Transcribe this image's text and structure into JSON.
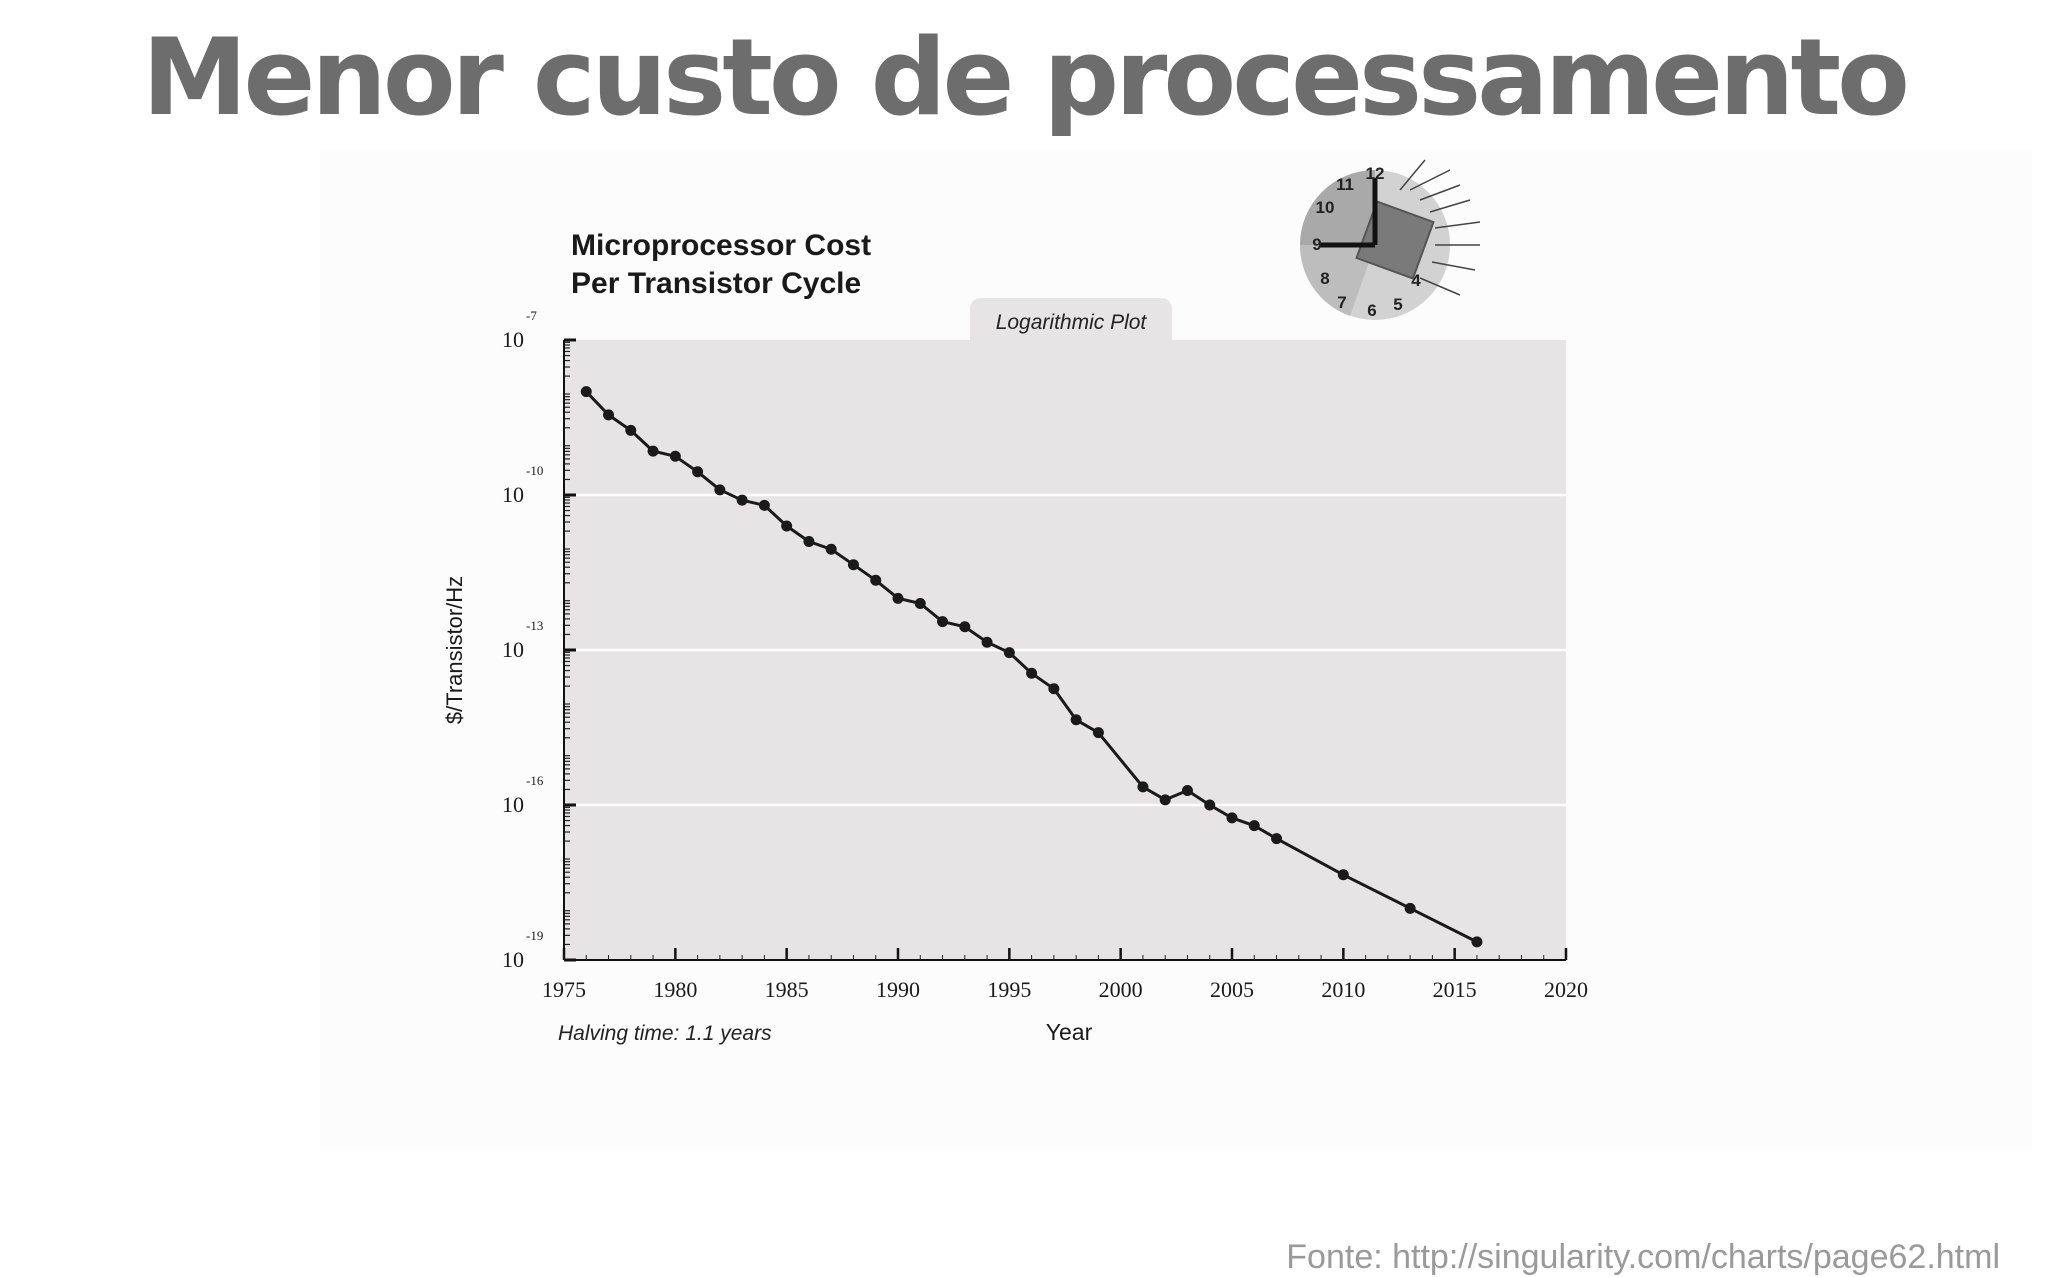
{
  "slide": {
    "title": "Menor custo de processamento",
    "source": "Fonte: http://singularity.com/charts/page62.html"
  },
  "colors": {
    "title": "#6d6d6d",
    "plot_background": "#e6e4e5",
    "line": "#1a1a1a",
    "source_text": "#9a9a9a"
  },
  "clock_icon": {
    "name": "clock-chip-icon",
    "numbers": [
      "12",
      "11",
      "10",
      "9",
      "8",
      "7",
      "6",
      "5",
      "4"
    ]
  },
  "chart_data": {
    "type": "line",
    "title_lines": [
      "Microprocessor Cost",
      "Per Transistor Cycle"
    ],
    "tab_label": "Logarithmic Plot",
    "xlabel": "Year",
    "ylabel": "$/Transistor/Hz",
    "note": "Halving time: 1.1 years",
    "y_scale": "log",
    "xlim": [
      1975,
      2020
    ],
    "ylim_exponent": [
      -19,
      -7
    ],
    "x_ticks": [
      "1975",
      "1980",
      "1985",
      "1990",
      "1995",
      "2000",
      "2005",
      "2010",
      "2015",
      "2020"
    ],
    "y_ticks": [
      {
        "base": "10",
        "exp": "-7"
      },
      {
        "base": "10",
        "exp": "-10"
      },
      {
        "base": "10",
        "exp": "-13"
      },
      {
        "base": "10",
        "exp": "-16"
      },
      {
        "base": "10",
        "exp": "-19"
      }
    ],
    "grid": "horizontal at major ticks",
    "series": [
      {
        "x": [
          1976,
          1977,
          1978,
          1979,
          1980,
          1981,
          1982,
          1983,
          1984,
          1985,
          1986,
          1987,
          1988,
          1989,
          1990,
          1991,
          1992,
          1993,
          1994,
          1995,
          1996,
          1997,
          1998,
          1999,
          2001,
          2002,
          2003,
          2004,
          2005,
          2006,
          2007,
          2010,
          2013,
          2016
        ],
        "log10_y": [
          -8.0,
          -8.45,
          -8.75,
          -9.15,
          -9.25,
          -9.55,
          -9.9,
          -10.1,
          -10.2,
          -10.6,
          -10.9,
          -11.05,
          -11.35,
          -11.65,
          -12.0,
          -12.1,
          -12.45,
          -12.55,
          -12.85,
          -13.05,
          -13.45,
          -13.75,
          -14.35,
          -14.6,
          -15.65,
          -15.9,
          -15.72,
          -16.0,
          -16.25,
          -16.4,
          -16.65,
          -17.35,
          -18.0,
          -18.65
        ]
      }
    ]
  }
}
